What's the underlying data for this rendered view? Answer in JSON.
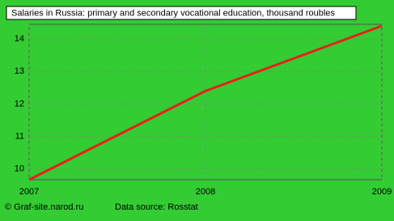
{
  "chart_data": {
    "type": "line",
    "title": "Salaries in Russia: primary and secondary vocational education, thousand roubles",
    "x": [
      2007,
      2008,
      2009
    ],
    "series": [
      {
        "name": "Salaries",
        "color": "#e8201a",
        "values": [
          9.67,
          12.4,
          14.4
        ]
      }
    ],
    "xlim": [
      2007,
      2009
    ],
    "xticks": [
      2007,
      2008,
      2009
    ],
    "ylim": [
      9.67,
      14.45
    ],
    "yticks": [
      10,
      11,
      12,
      13,
      14
    ],
    "grid": true,
    "footer_left": "© Graf-site.narod.ru",
    "footer_right": "Data source: Rosstat"
  }
}
